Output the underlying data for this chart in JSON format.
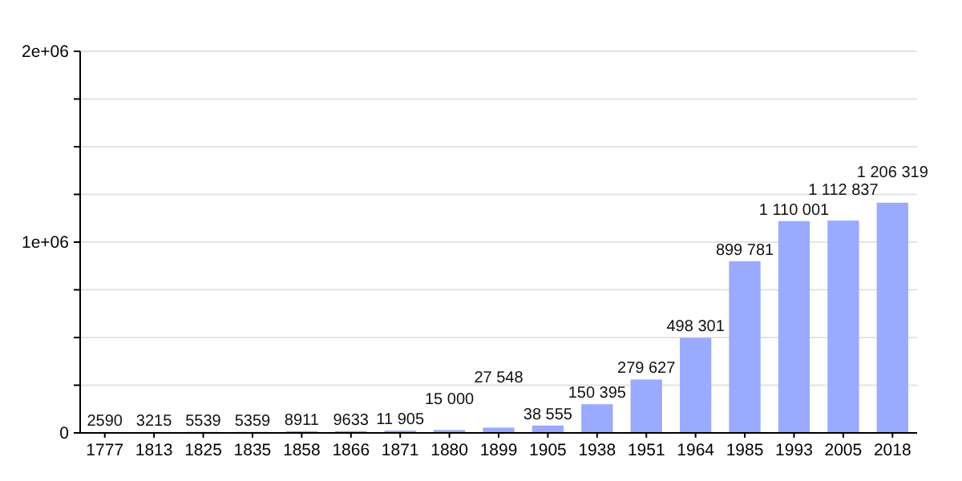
{
  "chart_data": {
    "type": "bar",
    "categories": [
      "1777",
      "1813",
      "1825",
      "1835",
      "1858",
      "1866",
      "1871",
      "1880",
      "1899",
      "1905",
      "1938",
      "1951",
      "1964",
      "1985",
      "1993",
      "2005",
      "2018"
    ],
    "values": [
      2590,
      3215,
      5539,
      5359,
      8911,
      9633,
      11905,
      15000,
      27548,
      38555,
      150395,
      279627,
      498301,
      899781,
      1110001,
      1112837,
      1206319
    ],
    "value_labels": [
      "2590",
      "3215",
      "5539",
      "5359",
      "8911",
      "9633",
      "11 905",
      "15 000",
      "27 548",
      "38 555",
      "150 395",
      "279 627",
      "498 301",
      "899 781",
      "1 110 001",
      "1 112 837",
      "1 206 319"
    ],
    "color": "#99aaff",
    "ylim": [
      0,
      2000000
    ],
    "yticks": [
      {
        "value": 0,
        "label": "0"
      },
      {
        "value": 250000,
        "label": null
      },
      {
        "value": 500000,
        "label": null
      },
      {
        "value": 750000,
        "label": null
      },
      {
        "value": 1000000,
        "label": "1e+06"
      },
      {
        "value": 1250000,
        "label": null
      },
      {
        "value": 1500000,
        "label": null
      },
      {
        "value": 1750000,
        "label": null
      },
      {
        "value": 2000000,
        "label": "2e+06"
      }
    ],
    "grid": true
  }
}
